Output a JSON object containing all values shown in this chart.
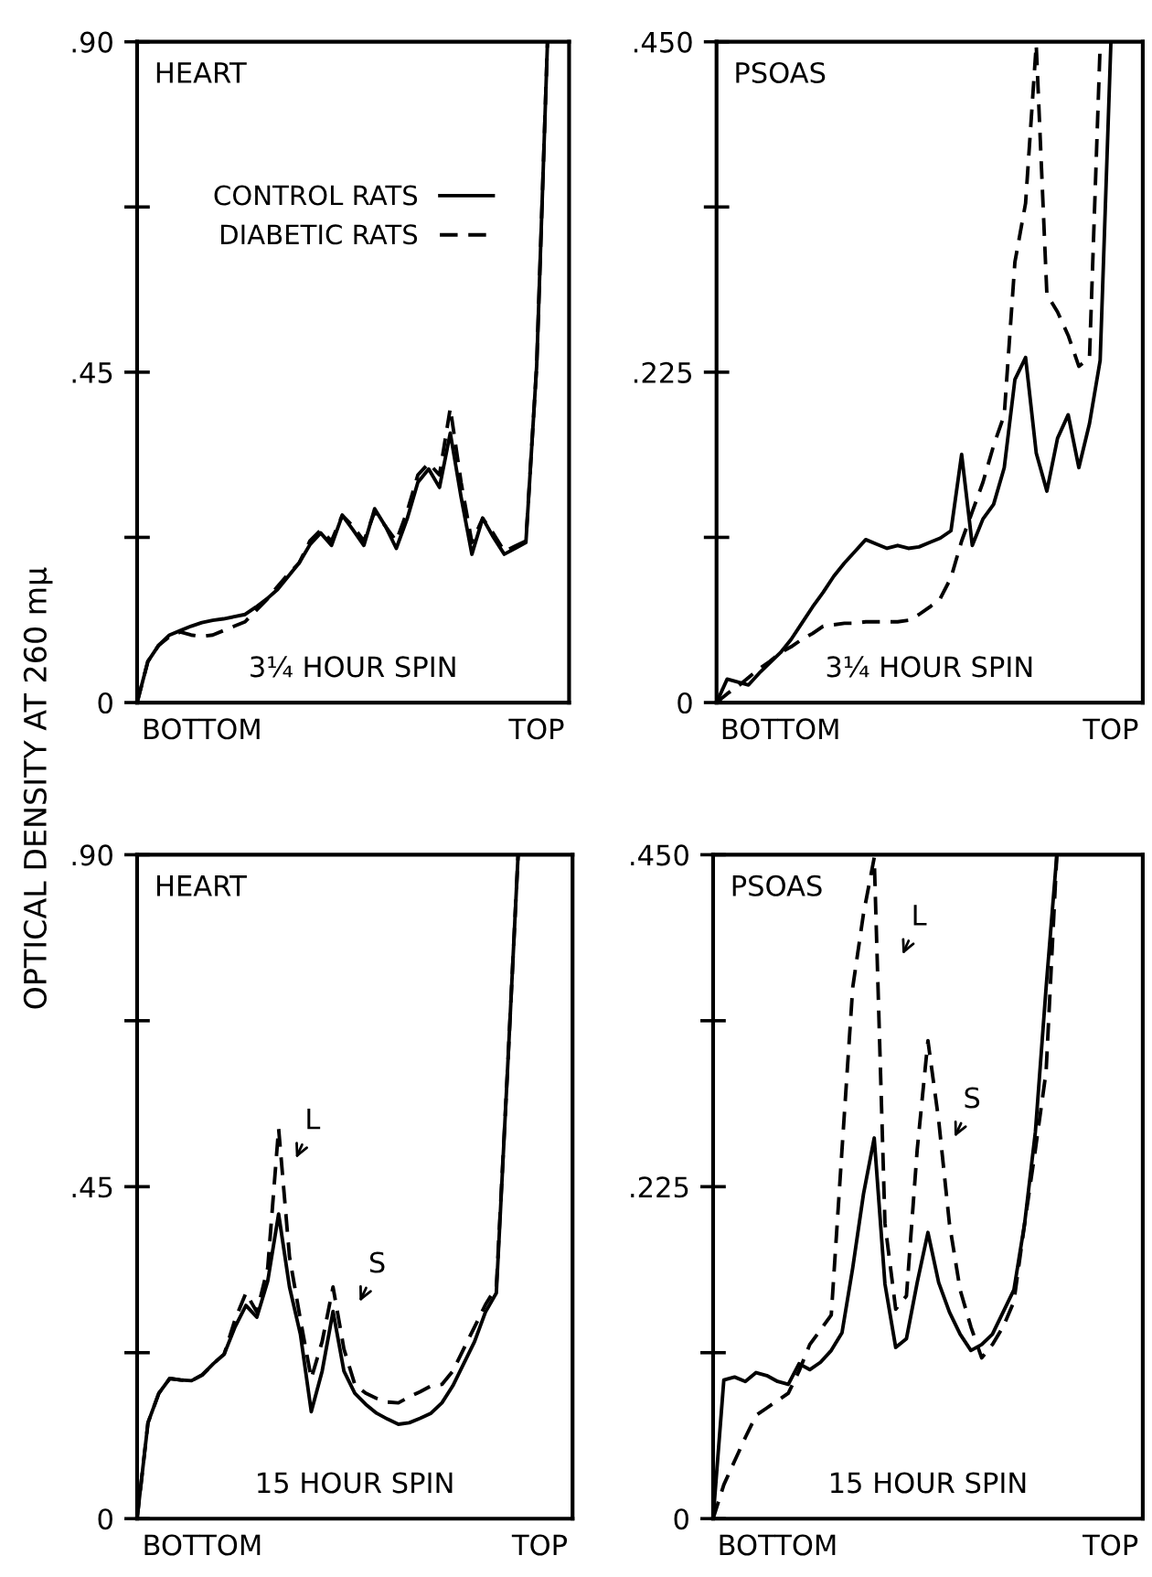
{
  "chart_data": [
    {
      "type": "line",
      "ylabel": "OPTICAL DENSITY AT 260 mμ",
      "categories": [
        null,
        null,
        null,
        null,
        null,
        null,
        "BOTTOM",
        null,
        null,
        null,
        null,
        null,
        null,
        null,
        null,
        null,
        null,
        null,
        null,
        null,
        null,
        null,
        null,
        null,
        null,
        null,
        null,
        null,
        null,
        null,
        null,
        null,
        null,
        null,
        null,
        null,
        null,
        "TOP",
        null,
        null,
        null
      ],
      "ylim": [
        0,
        0.9
      ],
      "yticks": [
        {
          "value": 0,
          "label": "0"
        },
        {
          "value": 0.225,
          "label": null
        },
        {
          "value": 0.45,
          "label": ".45"
        },
        {
          "value": 0.675,
          "label": null
        },
        {
          "value": 0.9,
          "label": ".90"
        }
      ],
      "legend": "top",
      "annotations": [
        "HEART",
        "3¼ HOUR SPIN"
      ],
      "series": [
        {
          "name": "CONTROL RATS",
          "color": "#000000",
          "line_style": "solid",
          "values": [
            0,
            0.056,
            0.078,
            0.092,
            0.098,
            0.104,
            0.109,
            0.112,
            0.114,
            0.117,
            0.12,
            0.13,
            0.141,
            0.154,
            0.172,
            0.19,
            0.215,
            0.231,
            0.214,
            0.255,
            0.235,
            0.214,
            0.264,
            0.24,
            0.21,
            0.25,
            0.3,
            0.318,
            0.293,
            0.367,
            0.28,
            0.202,
            0.251,
            0.225,
            0.202,
            0.21,
            0.218,
            0.459,
            0.9,
            null,
            null
          ]
        },
        {
          "name": "DIABETIC RATS",
          "color": "#000000",
          "line_style": "dashed",
          "values": [
            0,
            0.056,
            0.078,
            0.09,
            0.096,
            0.092,
            0.09,
            0.092,
            0.098,
            0.104,
            0.11,
            0.125,
            0.14,
            0.158,
            0.175,
            0.19,
            0.22,
            0.235,
            0.22,
            0.255,
            0.24,
            0.22,
            0.26,
            0.24,
            0.22,
            0.26,
            0.31,
            0.326,
            0.31,
            0.401,
            0.3,
            0.218,
            0.251,
            0.23,
            0.206,
            0.213,
            0.22,
            0.459,
            0.9,
            null,
            null
          ]
        }
      ]
    },
    {
      "type": "line",
      "categories": [
        null,
        null,
        null,
        null,
        null,
        null,
        "BOTTOM",
        null,
        null,
        null,
        null,
        null,
        null,
        null,
        null,
        null,
        null,
        null,
        null,
        null,
        null,
        null,
        null,
        null,
        null,
        null,
        null,
        null,
        null,
        null,
        null,
        null,
        null,
        null,
        null,
        null,
        null,
        "TOP",
        null,
        null,
        null
      ],
      "ylim": [
        0,
        0.45
      ],
      "yticks": [
        {
          "value": 0,
          "label": "0"
        },
        {
          "value": 0.1125,
          "label": null
        },
        {
          "value": 0.225,
          "label": ".225"
        },
        {
          "value": 0.3375,
          "label": null
        },
        {
          "value": 0.45,
          "label": ".450"
        }
      ],
      "annotations": [
        "PSOAS",
        "3¼ HOUR SPIN"
      ],
      "series": [
        {
          "color": "#000000",
          "line_style": "solid",
          "values": [
            0,
            0.016,
            0.014,
            0.012,
            0.02,
            0.027,
            0.034,
            0.043,
            0.054,
            0.065,
            0.075,
            0.086,
            0.095,
            0.103,
            0.111,
            0.108,
            0.105,
            0.107,
            0.105,
            0.106,
            0.109,
            0.112,
            0.117,
            0.169,
            0.107,
            0.125,
            0.135,
            0.16,
            0.22,
            0.235,
            0.17,
            0.144,
            0.18,
            0.196,
            0.16,
            0.19,
            0.233,
            0.448,
            null,
            null,
            null
          ]
        },
        {
          "color": "#000000",
          "line_style": "dashed",
          "values": [
            0,
            0.006,
            0.011,
            0.017,
            0.023,
            0.028,
            0.034,
            0.038,
            0.043,
            0.047,
            0.052,
            0.053,
            0.054,
            0.054,
            0.055,
            0.055,
            0.055,
            0.055,
            0.056,
            0.06,
            0.065,
            0.071,
            0.085,
            0.11,
            0.13,
            0.15,
            0.175,
            0.196,
            0.3,
            0.34,
            0.448,
            0.278,
            0.266,
            0.25,
            0.229,
            0.235,
            0.448,
            null,
            null,
            null,
            null
          ]
        }
      ]
    },
    {
      "type": "line",
      "categories": [
        null,
        null,
        null,
        null,
        null,
        null,
        "BOTTOM",
        null,
        null,
        null,
        null,
        null,
        null,
        null,
        null,
        null,
        null,
        null,
        null,
        null,
        null,
        null,
        null,
        null,
        null,
        null,
        null,
        null,
        null,
        null,
        null,
        null,
        null,
        null,
        null,
        null,
        null,
        "TOP",
        null,
        null,
        null
      ],
      "ylim": [
        0,
        0.9
      ],
      "yticks": [
        {
          "value": 0,
          "label": "0"
        },
        {
          "value": 0.225,
          "label": null
        },
        {
          "value": 0.45,
          "label": ".45"
        },
        {
          "value": 0.675,
          "label": null
        },
        {
          "value": 0.9,
          "label": ".90"
        }
      ],
      "annotations": [
        "HEART",
        "15 HOUR SPIN",
        "L",
        "S"
      ],
      "series": [
        {
          "color": "#000000",
          "line_style": "solid",
          "values": [
            0,
            0.13,
            0.17,
            0.19,
            0.188,
            0.187,
            0.195,
            0.21,
            0.223,
            0.26,
            0.289,
            0.273,
            0.322,
            0.413,
            0.314,
            0.25,
            0.145,
            0.2,
            0.281,
            0.2,
            0.17,
            0.155,
            0.143,
            0.135,
            0.128,
            0.13,
            0.136,
            0.143,
            0.157,
            0.18,
            0.21,
            0.24,
            0.28,
            0.306,
            0.6,
            0.9,
            null,
            null,
            null,
            null,
            null
          ]
        },
        {
          "color": "#000000",
          "line_style": "dashed",
          "values": [
            0,
            0.13,
            0.17,
            0.19,
            0.188,
            0.187,
            0.195,
            0.21,
            0.223,
            0.27,
            0.306,
            0.28,
            0.34,
            0.529,
            0.355,
            0.27,
            0.19,
            0.24,
            0.314,
            0.23,
            0.182,
            0.17,
            0.163,
            0.158,
            0.157,
            0.165,
            0.172,
            0.18,
            0.182,
            0.2,
            0.23,
            0.26,
            0.29,
            0.314,
            0.6,
            0.9,
            null,
            null,
            null,
            null,
            null
          ]
        }
      ]
    },
    {
      "type": "line",
      "categories": [
        null,
        null,
        null,
        null,
        null,
        null,
        "BOTTOM",
        null,
        null,
        null,
        null,
        null,
        null,
        null,
        null,
        null,
        null,
        null,
        null,
        null,
        null,
        null,
        null,
        null,
        null,
        null,
        null,
        null,
        null,
        null,
        null,
        null,
        null,
        null,
        null,
        null,
        null,
        "TOP",
        null,
        null,
        null
      ],
      "ylim": [
        0,
        0.45
      ],
      "yticks": [
        {
          "value": 0,
          "label": "0"
        },
        {
          "value": 0.1125,
          "label": null
        },
        {
          "value": 0.225,
          "label": ".225"
        },
        {
          "value": 0.3375,
          "label": null
        },
        {
          "value": 0.45,
          "label": ".450"
        }
      ],
      "annotations": [
        "PSOAS",
        "15 HOUR SPIN",
        "L",
        "S"
      ],
      "series": [
        {
          "color": "#000000",
          "line_style": "solid",
          "values": [
            0,
            0.094,
            0.096,
            0.093,
            0.099,
            0.097,
            0.093,
            0.091,
            0.105,
            0.101,
            0.106,
            0.114,
            0.126,
            0.17,
            0.22,
            0.258,
            0.159,
            0.116,
            0.122,
            0.16,
            0.194,
            0.16,
            0.14,
            0.125,
            0.114,
            0.118,
            0.125,
            0.14,
            0.155,
            0.2,
            0.262,
            0.36,
            0.45,
            null,
            null,
            null,
            null,
            null,
            null,
            null,
            null
          ]
        },
        {
          "color": "#000000",
          "line_style": "dashed",
          "values": [
            0,
            0.023,
            0.039,
            0.055,
            0.07,
            0.075,
            0.08,
            0.085,
            0.1,
            0.118,
            0.128,
            0.138,
            0.25,
            0.36,
            0.41,
            0.448,
            0.2,
            0.142,
            0.151,
            0.25,
            0.324,
            0.27,
            0.2,
            0.155,
            0.13,
            0.109,
            0.118,
            0.13,
            0.147,
            0.2,
            0.25,
            0.303,
            0.45,
            null,
            null,
            null,
            null,
            null,
            null,
            null,
            null
          ]
        }
      ]
    }
  ]
}
